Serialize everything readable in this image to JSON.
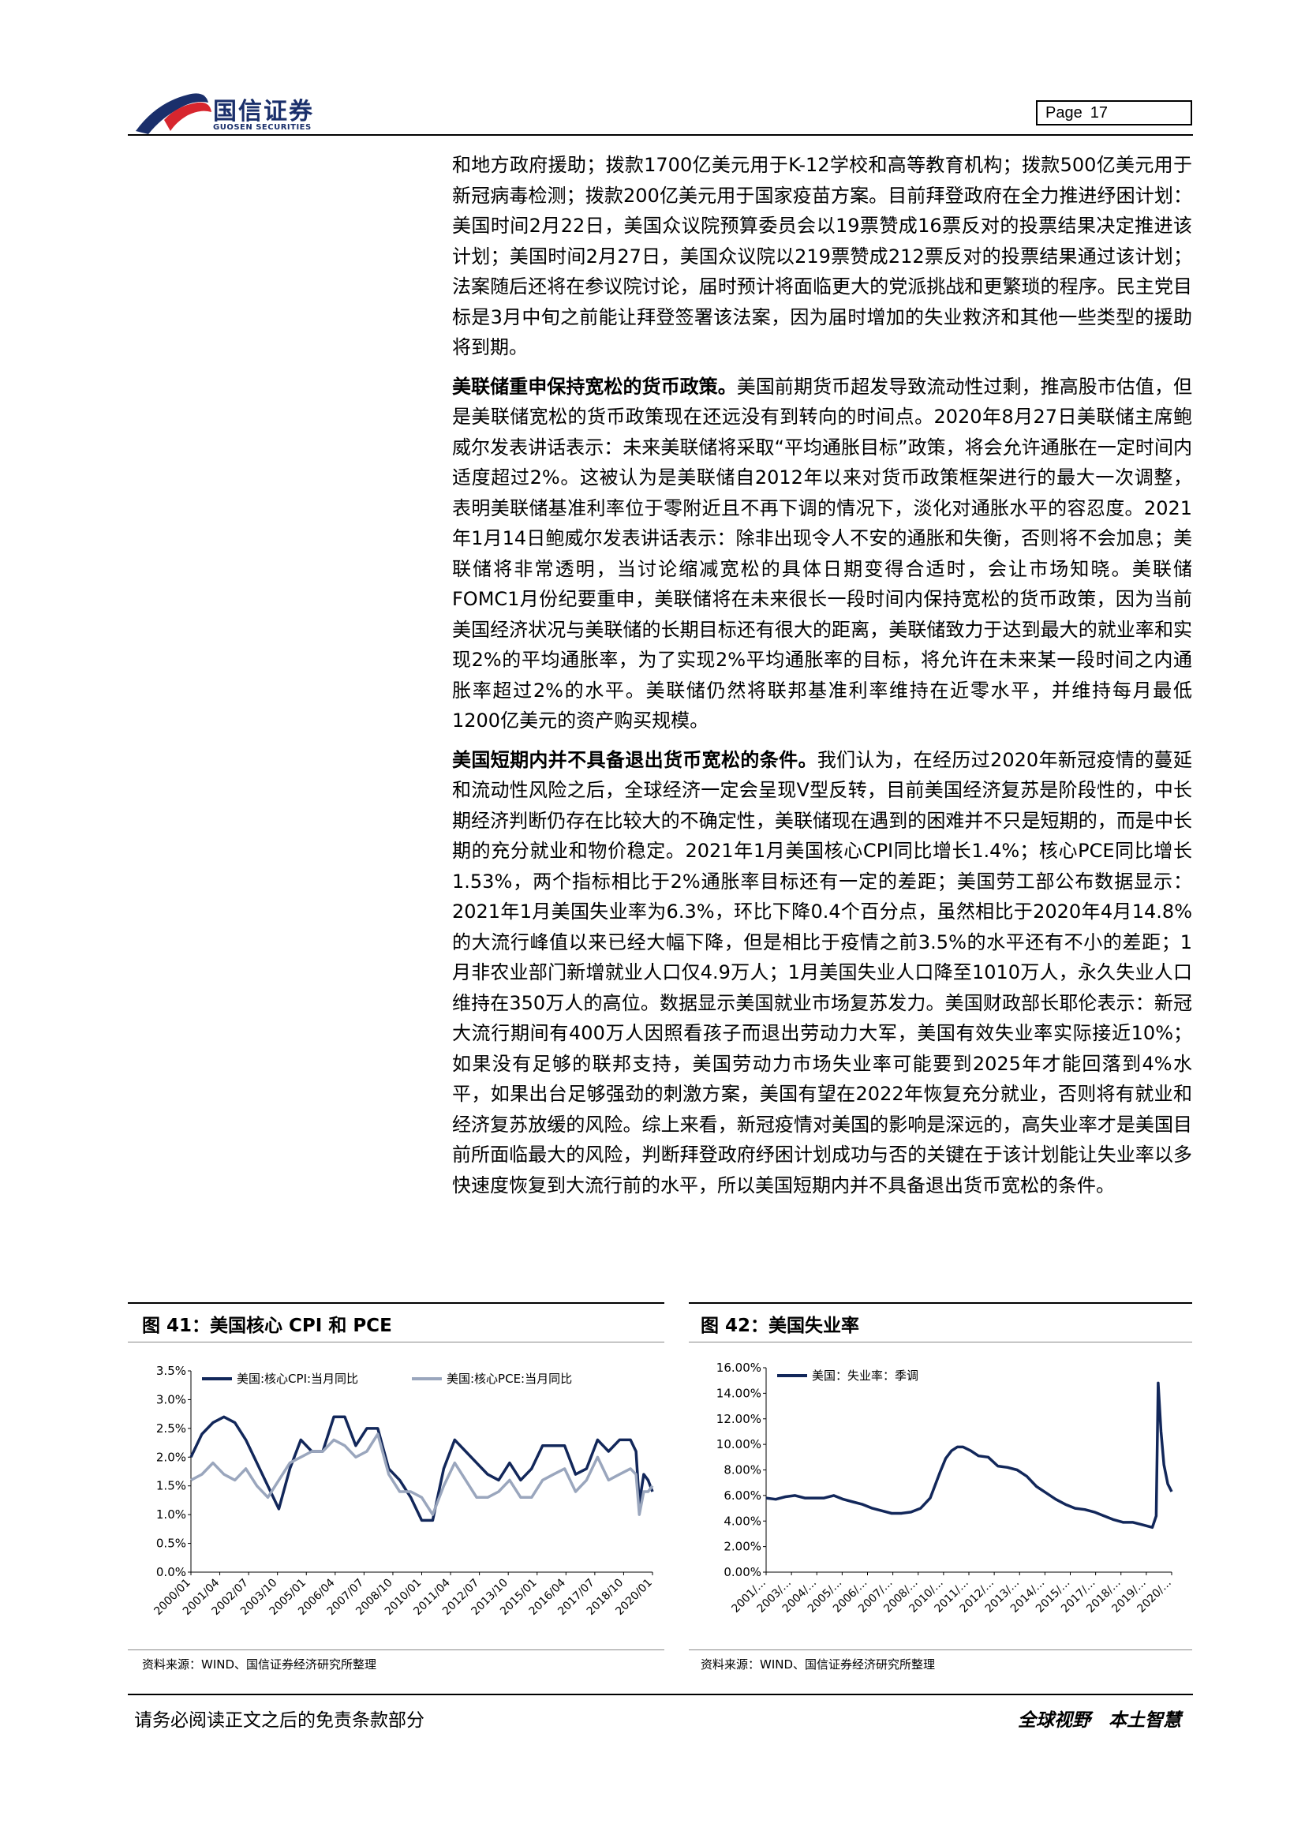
{
  "header": {
    "logo_cn": "国信证券",
    "logo_en": "GUOSEN SECURITIES",
    "page_label": "Page",
    "page_number": "17"
  },
  "body": {
    "p1": "和地方政府援助；拨款1700亿美元用于K-12学校和高等教育机构；拨款500亿美元用于新冠病毒检测；拨款200亿美元用于国家疫苗方案。目前拜登政府在全力推进纾困计划：美国时间2月22日，美国众议院预算委员会以19票赞成16票反对的投票结果决定推进该计划；美国时间2月27日，美国众议院以219票赞成212票反对的投票结果通过该计划；法案随后还将在参议院讨论，届时预计将面临更大的党派挑战和更繁琐的程序。民主党目标是3月中旬之前能让拜登签署该法案，因为届时增加的失业救济和其他一些类型的援助将到期。",
    "p2_head": "美联储重申保持宽松的货币政策。",
    "p2": "美国前期货币超发导致流动性过剩，推高股市估值，但是美联储宽松的货币政策现在还远没有到转向的时间点。2020年8月27日美联储主席鲍威尔发表讲话表示：未来美联储将采取“平均通胀目标”政策，将会允许通胀在一定时间内适度超过2%。这被认为是美联储自2012年以来对货币政策框架进行的最大一次调整，表明美联储基准利率位于零附近且不再下调的情况下，淡化对通胀水平的容忍度。2021年1月14日鲍威尔发表讲话表示：除非出现令人不安的通胀和失衡，否则将不会加息；美联储将非常透明，当讨论缩减宽松的具体日期变得合适时，会让市场知晓。美联储FOMC1月份纪要重申，美联储将在未来很长一段时间内保持宽松的货币政策，因为当前美国经济状况与美联储的长期目标还有很大的距离，美联储致力于达到最大的就业率和实现2%的平均通胀率，为了实现2%平均通胀率的目标，将允许在未来某一段时间之内通胀率超过2%的水平。美联储仍然将联邦基准利率维持在近零水平，并维持每月最低1200亿美元的资产购买规模。",
    "p3_head": "美国短期内并不具备退出货币宽松的条件。",
    "p3": "我们认为，在经历过2020年新冠疫情的蔓延和流动性风险之后，全球经济一定会呈现V型反转，目前美国经济复苏是阶段性的，中长期经济判断仍存在比较大的不确定性，美联储现在遇到的困难并不只是短期的，而是中长期的充分就业和物价稳定。2021年1月美国核心CPI同比增长1.4%；核心PCE同比增长1.53%，两个指标相比于2%通胀率目标还有一定的差距；美国劳工部公布数据显示：2021年1月美国失业率为6.3%，环比下降0.4个百分点，虽然相比于2020年4月14.8%的大流行峰值以来已经大幅下降，但是相比于疫情之前3.5%的水平还有不小的差距；1月非农业部门新增就业人口仅4.9万人；1月美国失业人口降至1010万人，永久失业人口维持在350万人的高位。数据显示美国就业市场复苏发力。美国财政部长耶伦表示：新冠大流行期间有400万人因照看孩子而退出劳动力大军，美国有效失业率实际接近10%；如果没有足够的联邦支持，美国劳动力市场失业率可能要到2025年才能回落到4%水平，如果出台足够强劲的刺激方案，美国有望在2022年恢复充分就业，否则将有就业和经济复苏放缓的风险。综上来看，新冠疫情对美国的影响是深远的，高失业率才是美国目前所面临最大的风险，判断拜登政府纾困计划成功与否的关键在于该计划能让失业率以多快速度恢复到大流行前的水平，所以美国短期内并不具备退出货币宽松的条件。"
  },
  "fig41": {
    "title": "图 41：美国核心 CPI 和 PCE",
    "source": "资料来源：WIND、国信证券经济研究所整理"
  },
  "fig42": {
    "title": "图 42：美国失业率",
    "source": "资料来源：WIND、国信证券经济研究所整理"
  },
  "chart_data": [
    {
      "type": "line",
      "ylim": [
        0,
        3.5
      ],
      "yticks": [
        "0.0%",
        "0.5%",
        "1.0%",
        "1.5%",
        "2.0%",
        "2.5%",
        "3.0%",
        "3.5%"
      ],
      "xticks": [
        "2000/01",
        "2001/04",
        "2002/07",
        "2003/10",
        "2005/01",
        "2006/04",
        "2007/07",
        "2008/10",
        "2010/01",
        "2011/04",
        "2012/07",
        "2013/10",
        "2015/01",
        "2016/04",
        "2017/07",
        "2018/10",
        "2020/01"
      ],
      "legend_position": "top",
      "series": [
        {
          "name": "美国:核心CPI:当月同比",
          "color": "#12275a",
          "x": [
            2000.0,
            2000.5,
            2001.0,
            2001.5,
            2002.0,
            2002.5,
            2003.0,
            2003.5,
            2004.0,
            2004.5,
            2005.0,
            2005.5,
            2006.0,
            2006.5,
            2007.0,
            2007.5,
            2008.0,
            2008.5,
            2009.0,
            2009.5,
            2010.0,
            2010.5,
            2011.0,
            2011.5,
            2012.0,
            2012.5,
            2013.0,
            2013.5,
            2014.0,
            2014.5,
            2015.0,
            2015.5,
            2016.0,
            2016.5,
            2017.0,
            2017.5,
            2018.0,
            2018.5,
            2019.0,
            2019.5,
            2020.0,
            2020.25,
            2020.4,
            2020.6,
            2020.8,
            2021.0
          ],
          "y": [
            2.0,
            2.4,
            2.6,
            2.7,
            2.6,
            2.3,
            1.9,
            1.5,
            1.1,
            1.8,
            2.3,
            2.1,
            2.1,
            2.7,
            2.7,
            2.2,
            2.5,
            2.5,
            1.8,
            1.6,
            1.3,
            0.9,
            0.9,
            1.8,
            2.3,
            2.1,
            1.9,
            1.7,
            1.6,
            1.9,
            1.6,
            1.8,
            2.2,
            2.2,
            2.2,
            1.7,
            1.8,
            2.3,
            2.1,
            2.3,
            2.3,
            2.1,
            1.2,
            1.7,
            1.6,
            1.4
          ]
        },
        {
          "name": "美国:核心PCE:当月同比",
          "color": "#9aa6bd",
          "x": [
            2000.0,
            2000.5,
            2001.0,
            2001.5,
            2002.0,
            2002.5,
            2003.0,
            2003.5,
            2004.0,
            2004.5,
            2005.0,
            2005.5,
            2006.0,
            2006.5,
            2007.0,
            2007.5,
            2008.0,
            2008.5,
            2009.0,
            2009.5,
            2010.0,
            2010.5,
            2011.0,
            2011.5,
            2012.0,
            2012.5,
            2013.0,
            2013.5,
            2014.0,
            2014.5,
            2015.0,
            2015.5,
            2016.0,
            2016.5,
            2017.0,
            2017.5,
            2018.0,
            2018.5,
            2019.0,
            2019.5,
            2020.0,
            2020.25,
            2020.4,
            2020.6,
            2020.8,
            2021.0
          ],
          "y": [
            1.6,
            1.7,
            1.9,
            1.7,
            1.6,
            1.8,
            1.5,
            1.3,
            1.6,
            1.9,
            2.0,
            2.1,
            2.1,
            2.3,
            2.2,
            2.0,
            2.1,
            2.4,
            1.7,
            1.4,
            1.4,
            1.3,
            1.0,
            1.5,
            1.9,
            1.6,
            1.3,
            1.3,
            1.4,
            1.6,
            1.3,
            1.3,
            1.6,
            1.7,
            1.8,
            1.4,
            1.6,
            2.0,
            1.6,
            1.7,
            1.8,
            1.7,
            1.0,
            1.4,
            1.4,
            1.5
          ]
        }
      ]
    },
    {
      "type": "line",
      "ylim": [
        0,
        16
      ],
      "yticks": [
        "0.00%",
        "2.00%",
        "4.00%",
        "6.00%",
        "8.00%",
        "10.00%",
        "12.00%",
        "14.00%",
        "16.00%"
      ],
      "xticks": [
        "2001/...",
        "2003/...",
        "2004/...",
        "2005/...",
        "2006/...",
        "2007/...",
        "2008/...",
        "2010/...",
        "2011/...",
        "2012/...",
        "2013/...",
        "2014/...",
        "2015/...",
        "2017/...",
        "2018/...",
        "2019/...",
        "2020/..."
      ],
      "legend_position": "top",
      "series": [
        {
          "name": "美国：失业率：季调",
          "color": "#12275a",
          "x": [
            2000.0,
            2000.5,
            2001.0,
            2001.5,
            2002.0,
            2002.5,
            2003.0,
            2003.5,
            2004.0,
            2004.5,
            2005.0,
            2005.5,
            2006.0,
            2006.5,
            2007.0,
            2007.5,
            2008.0,
            2008.5,
            2009.0,
            2009.3,
            2009.6,
            2009.9,
            2010.2,
            2010.6,
            2011.0,
            2011.5,
            2012.0,
            2012.5,
            2013.0,
            2013.5,
            2014.0,
            2014.5,
            2015.0,
            2015.5,
            2016.0,
            2016.5,
            2017.0,
            2017.5,
            2018.0,
            2018.5,
            2019.0,
            2019.5,
            2020.0,
            2020.2,
            2020.3,
            2020.45,
            2020.6,
            2020.8,
            2021.0
          ],
          "y": [
            5.8,
            5.7,
            5.9,
            6.0,
            5.8,
            5.8,
            5.8,
            6.0,
            5.7,
            5.5,
            5.3,
            5.0,
            4.8,
            4.6,
            4.6,
            4.7,
            5.0,
            5.8,
            7.8,
            8.9,
            9.5,
            9.8,
            9.8,
            9.5,
            9.1,
            9.0,
            8.3,
            8.2,
            8.0,
            7.5,
            6.7,
            6.2,
            5.7,
            5.3,
            5.0,
            4.9,
            4.7,
            4.4,
            4.1,
            3.9,
            3.9,
            3.7,
            3.5,
            4.4,
            14.8,
            11.0,
            8.4,
            6.9,
            6.3
          ]
        }
      ]
    }
  ]
}
